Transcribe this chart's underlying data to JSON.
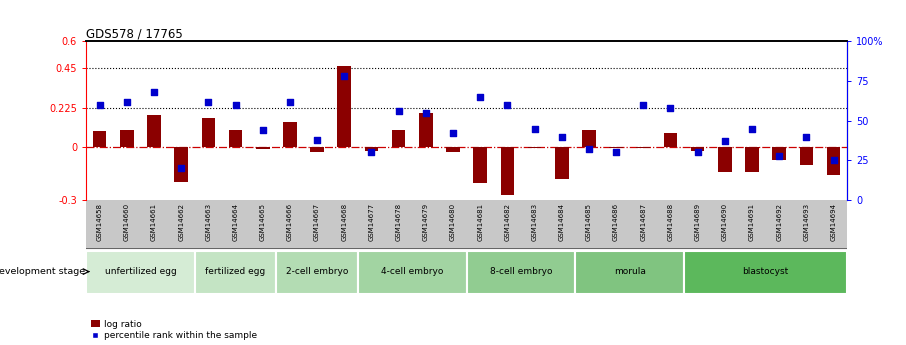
{
  "title": "GDS578 / 17765",
  "samples": [
    "GSM14658",
    "GSM14660",
    "GSM14661",
    "GSM14662",
    "GSM14663",
    "GSM14664",
    "GSM14665",
    "GSM14666",
    "GSM14667",
    "GSM14668",
    "GSM14677",
    "GSM14678",
    "GSM14679",
    "GSM14680",
    "GSM14681",
    "GSM14682",
    "GSM14683",
    "GSM14684",
    "GSM14685",
    "GSM14686",
    "GSM14687",
    "GSM14688",
    "GSM14689",
    "GSM14690",
    "GSM14691",
    "GSM14692",
    "GSM14693",
    "GSM14694"
  ],
  "log_ratio": [
    0.09,
    0.1,
    0.185,
    -0.2,
    0.165,
    0.1,
    -0.01,
    0.145,
    -0.03,
    0.46,
    -0.02,
    0.1,
    0.195,
    -0.03,
    -0.205,
    -0.27,
    -0.005,
    -0.18,
    0.1,
    -0.005,
    -0.005,
    0.08,
    -0.02,
    -0.14,
    -0.14,
    -0.07,
    -0.1,
    -0.16
  ],
  "percentile_rank": [
    60,
    62,
    68,
    20,
    62,
    60,
    44,
    62,
    38,
    78,
    30,
    56,
    55,
    42,
    65,
    60,
    45,
    40,
    32,
    30,
    60,
    58,
    30,
    37,
    45,
    28,
    40,
    25
  ],
  "stages": [
    {
      "label": "unfertilized egg",
      "start": 0,
      "end": 4
    },
    {
      "label": "fertilized egg",
      "start": 4,
      "end": 7
    },
    {
      "label": "2-cell embryo",
      "start": 7,
      "end": 10
    },
    {
      "label": "4-cell embryo",
      "start": 10,
      "end": 14
    },
    {
      "label": "8-cell embryo",
      "start": 14,
      "end": 18
    },
    {
      "label": "morula",
      "start": 18,
      "end": 22
    },
    {
      "label": "blastocyst",
      "start": 22,
      "end": 28
    }
  ],
  "stage_colors": [
    "#d5ecd5",
    "#c4e4c4",
    "#b3dcb3",
    "#a2d4a2",
    "#91cc91",
    "#80c480",
    "#5cb85c"
  ],
  "ylim": [
    -0.3,
    0.6
  ],
  "y2lim": [
    0,
    100
  ],
  "yticks_left": [
    -0.3,
    0.0,
    0.225,
    0.45,
    0.6
  ],
  "ytick_labels_left": [
    "-0.3",
    "0",
    "0.225",
    "0.45",
    "0.6"
  ],
  "yticks_right": [
    0,
    25,
    50,
    75,
    100
  ],
  "ytick_labels_right": [
    "0",
    "25",
    "50",
    "75",
    "100%"
  ],
  "bar_color": "#8B0000",
  "dot_color": "#0000CC",
  "hline_color": "#CC0000",
  "bar_width": 0.5,
  "gsm_bg_color": "#c8c8c8",
  "stage_border_color": "#ffffff",
  "dev_stage_text": "development stage"
}
